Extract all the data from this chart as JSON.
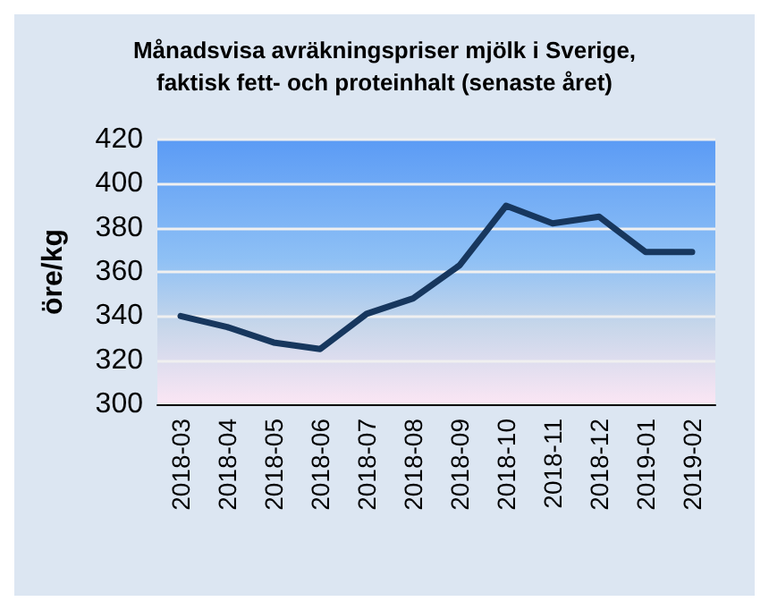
{
  "chart_data": {
    "type": "line",
    "title": "Månadsvisa avräkningspriser mjölk i Sverige,\nfaktisk fett- och proteinhalt (senaste året)",
    "ylabel": "öre/kg",
    "categories": [
      "2018-03",
      "2018-04",
      "2018-05",
      "2018-06",
      "2018-07",
      "2018-08",
      "2018-09",
      "2018-10",
      "2018-11",
      "2018-12",
      "2019-01",
      "2019-02"
    ],
    "series": [
      {
        "color": "#17375e",
        "values": [
          340,
          335,
          328,
          325,
          341,
          348,
          363,
          390,
          382,
          385,
          369,
          369
        ]
      }
    ],
    "ylim": [
      300,
      420
    ],
    "yticks": [
      300,
      320,
      340,
      360,
      380,
      400,
      420
    ],
    "grid": "y",
    "marker": "none",
    "line_style": "solid"
  }
}
